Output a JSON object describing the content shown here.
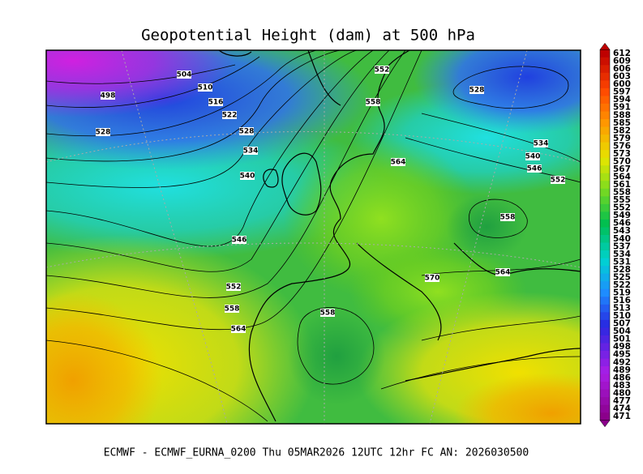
{
  "title": "Geopotential Height (dam) at 500 hPa",
  "footer": "ECMWF - ECMWF_EURNA_0200 Thu 05MAR2026 12UTC 12hr FC AN: 2026030500",
  "contour_labels": [
    "504",
    "510",
    "498",
    "516",
    "522",
    "528",
    "528",
    "534",
    "540",
    "546",
    "552",
    "558",
    "564",
    "552",
    "528",
    "558",
    "564",
    "534",
    "540",
    "546",
    "552",
    "558",
    "570",
    "558",
    "564"
  ],
  "colorbar": {
    "ticks": [
      612,
      609,
      606,
      603,
      600,
      597,
      594,
      591,
      588,
      585,
      582,
      579,
      576,
      573,
      570,
      567,
      564,
      561,
      558,
      555,
      552,
      549,
      546,
      543,
      540,
      537,
      534,
      531,
      528,
      525,
      522,
      519,
      516,
      513,
      510,
      507,
      504,
      501,
      498,
      495,
      492,
      489,
      486,
      483,
      480,
      477,
      474,
      471
    ]
  }
}
